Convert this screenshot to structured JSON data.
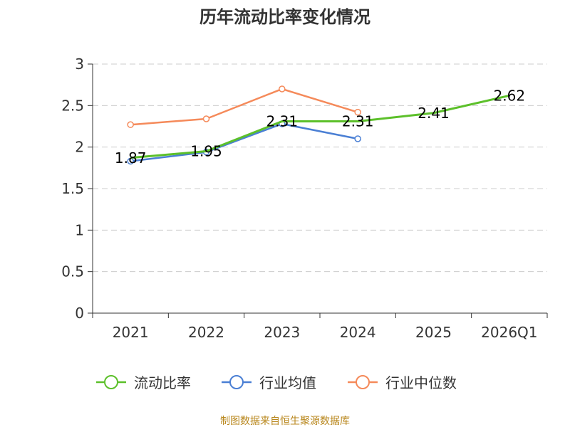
{
  "chart_data": {
    "type": "line",
    "title": "历年流动比率变化情况",
    "categories": [
      "2021",
      "2022",
      "2023",
      "2024",
      "2025",
      "2026Q1"
    ],
    "ylim": [
      0,
      3
    ],
    "yticks": [
      "0",
      "0.5",
      "1",
      "1.5",
      "2",
      "2.5",
      "3"
    ],
    "grid": true,
    "legend_position": "bottom",
    "series": [
      {
        "name": "流动比率",
        "color": "#5cc02a",
        "values": [
          1.87,
          1.95,
          2.31,
          2.31,
          2.41,
          2.62
        ],
        "labels": [
          "1.87",
          "1.95",
          "2.31",
          "2.31",
          "2.41",
          "2.62"
        ],
        "show_markers": false
      },
      {
        "name": "行业均值",
        "color": "#4a7fd4",
        "values": [
          1.83,
          1.94,
          2.28,
          2.1,
          null,
          null
        ],
        "show_markers": true
      },
      {
        "name": "行业中位数",
        "color": "#f58a5a",
        "values": [
          2.27,
          2.34,
          2.7,
          2.42,
          null,
          null
        ],
        "show_markers": true
      }
    ],
    "source": "制图数据来自恒生聚源数据库"
  }
}
